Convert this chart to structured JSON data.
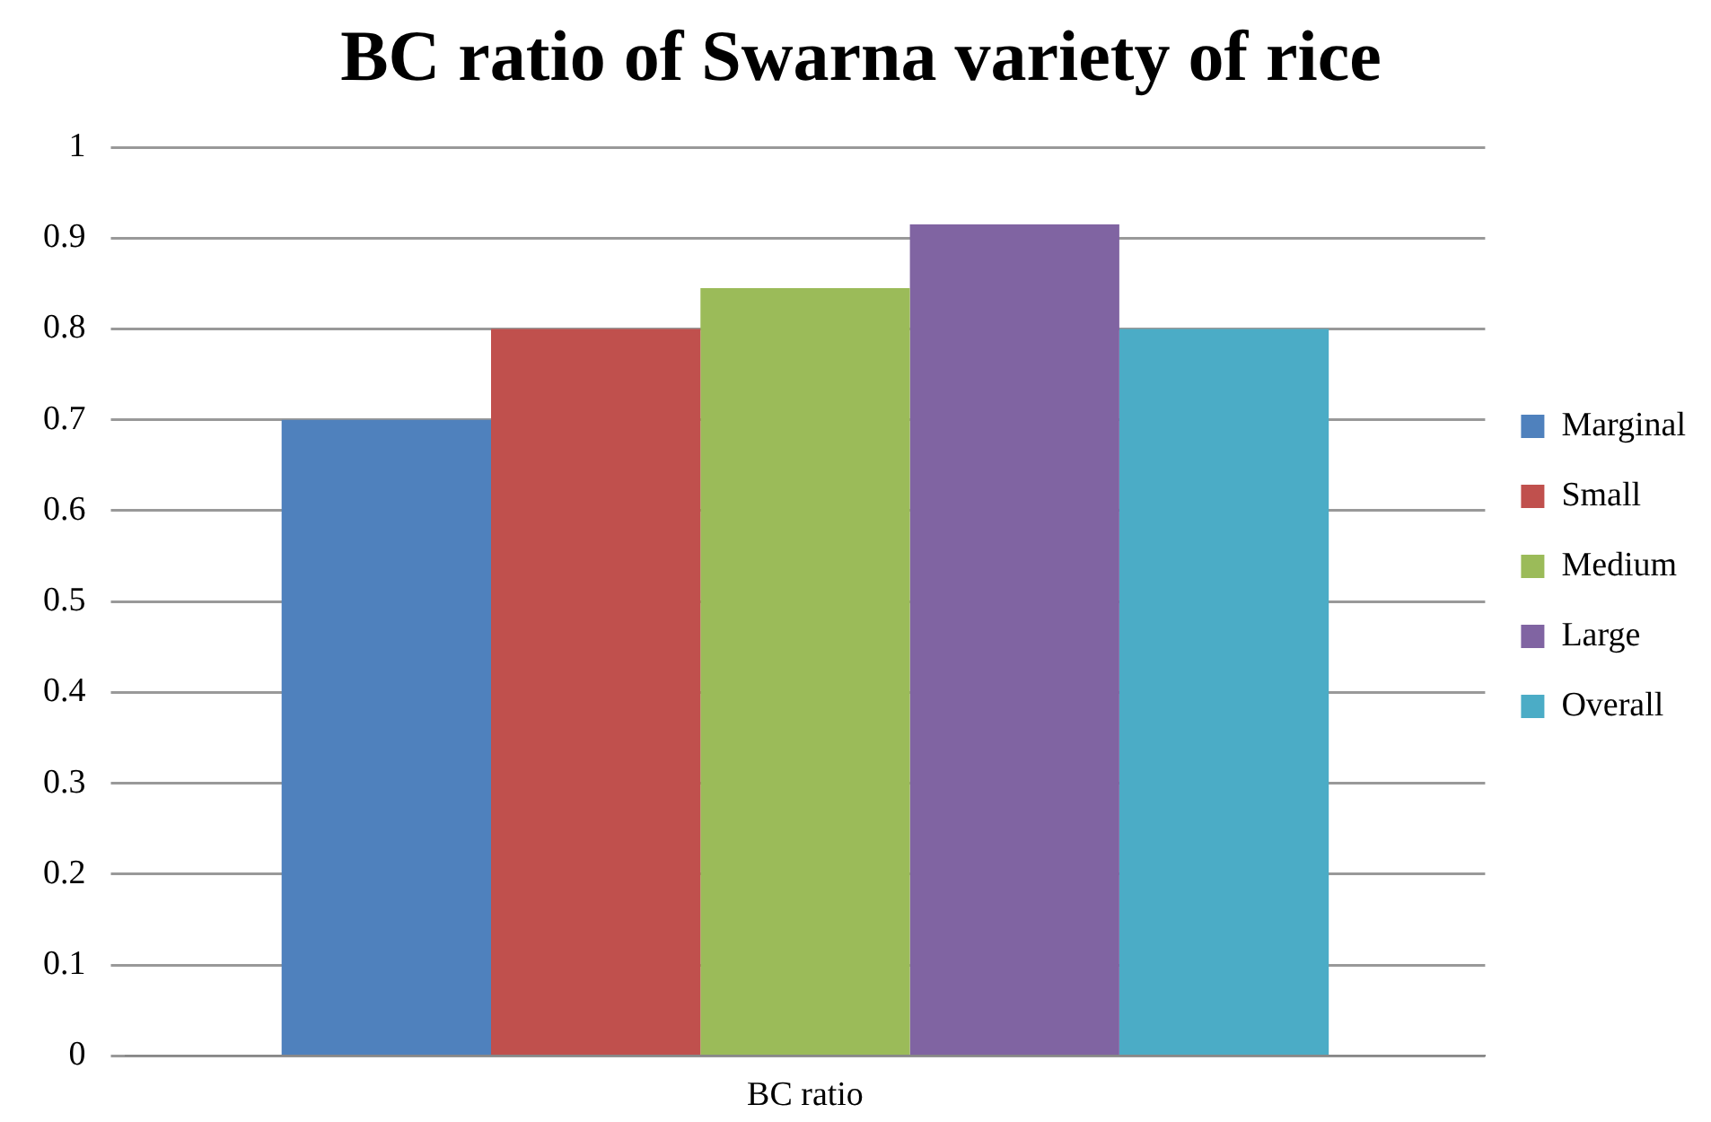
{
  "chart_data": {
    "type": "bar",
    "title": "BC ratio of Swarna variety of rice",
    "categories": [
      "BC ratio"
    ],
    "series": [
      {
        "name": "Marginal",
        "color": "#4f81bd",
        "values": [
          0.7
        ]
      },
      {
        "name": "Small",
        "color": "#c0504d",
        "values": [
          0.8
        ]
      },
      {
        "name": "Medium",
        "color": "#9bbb59",
        "values": [
          0.845
        ]
      },
      {
        "name": "Large",
        "color": "#8064a2",
        "values": [
          0.915
        ]
      },
      {
        "name": "Overall",
        "color": "#4bacc6",
        "values": [
          0.8
        ]
      }
    ],
    "ylim": [
      0,
      1
    ],
    "yticks": [
      0,
      0.1,
      0.2,
      0.3,
      0.4,
      0.5,
      0.6,
      0.7,
      0.8,
      0.9,
      1
    ],
    "grid": "y",
    "legend": "right"
  }
}
